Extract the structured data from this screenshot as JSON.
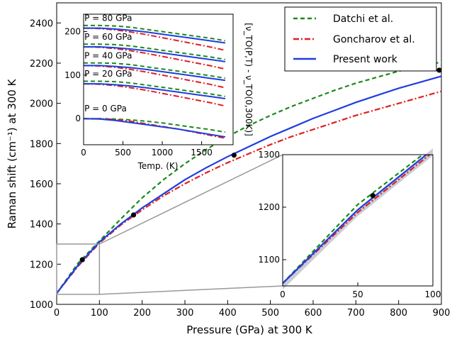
{
  "chart_data": [
    {
      "id": "main",
      "type": "line",
      "xlabel": "Pressure (GPa) at 300 K",
      "ylabel": "Raman shift (cm⁻¹) at 300 K",
      "xlim": [
        0,
        900
      ],
      "ylim": [
        1000,
        2500
      ],
      "xticks": [
        0,
        100,
        200,
        300,
        400,
        500,
        600,
        700,
        800,
        900
      ],
      "yticks": [
        1000,
        1200,
        1400,
        1600,
        1800,
        2000,
        2200,
        2400
      ],
      "legend": {
        "placement": "top-right",
        "entries": [
          "Datchi et al.",
          "Goncharov et al.",
          "Present work"
        ]
      },
      "series": [
        {
          "name": "Datchi et al.",
          "color": "#1a8a1a",
          "style": "dashed",
          "x": [
            0,
            50,
            100,
            150,
            200,
            250,
            300,
            350,
            400,
            450,
            500,
            550,
            600,
            650,
            700,
            750,
            800,
            850,
            900
          ],
          "y": [
            1055,
            1205,
            1315,
            1425,
            1530,
            1620,
            1700,
            1770,
            1835,
            1890,
            1940,
            1985,
            2025,
            2065,
            2100,
            2130,
            2160,
            2185,
            2205
          ]
        },
        {
          "name": "Goncharov et al.",
          "color": "#e02020",
          "style": "dashdot",
          "x": [
            0,
            50,
            100,
            150,
            200,
            250,
            300,
            350,
            400,
            450,
            500,
            550,
            600,
            650,
            700,
            750,
            800,
            850,
            900
          ],
          "y": [
            1055,
            1190,
            1305,
            1395,
            1470,
            1540,
            1600,
            1655,
            1705,
            1750,
            1795,
            1835,
            1870,
            1905,
            1940,
            1970,
            2000,
            2030,
            2060
          ]
        },
        {
          "name": "Present work",
          "color": "#1f3de0",
          "style": "solid",
          "x": [
            0,
            50,
            100,
            150,
            200,
            250,
            300,
            350,
            400,
            450,
            500,
            550,
            600,
            650,
            700,
            750,
            800,
            850,
            900
          ],
          "y": [
            1055,
            1195,
            1310,
            1400,
            1480,
            1550,
            1620,
            1680,
            1735,
            1785,
            1835,
            1880,
            1925,
            1965,
            2005,
            2040,
            2075,
            2105,
            2135
          ]
        }
      ],
      "markers": {
        "color": "#000000",
        "x": [
          60,
          180,
          415,
          895
        ],
        "y": [
          1222,
          1445,
          1742,
          2165
        ]
      }
    },
    {
      "id": "inset-top",
      "type": "line",
      "xlabel": "Temp. (K)",
      "ylabel": "[ν_TO(P,T) - ν_TO(0,300K)]",
      "xlim": [
        0,
        1900
      ],
      "ylim": [
        -60,
        240
      ],
      "xticks": [
        0,
        500,
        1000,
        1500
      ],
      "yticks": [
        0,
        100,
        200
      ],
      "panels": [
        {
          "label": "P = 80 GPa",
          "offset": 208
        },
        {
          "label": "P = 60 GPa",
          "offset": 165
        },
        {
          "label": "P = 40 GPa",
          "offset": 122
        },
        {
          "label": "P = 20 GPa",
          "offset": 80
        },
        {
          "label": "P =  0 GPa",
          "offset": 0
        }
      ],
      "temps": [
        0,
        200,
        400,
        600,
        800,
        1000,
        1200,
        1400,
        1600,
        1800
      ],
      "curves": {
        "Datchi et al.": [
          6,
          6,
          5,
          2,
          -3,
          -8,
          -13,
          -18,
          -23,
          -29
        ],
        "Goncharov et al.": [
          0,
          -1,
          -4,
          -9,
          -15,
          -22,
          -29,
          -36,
          -43,
          -51
        ],
        "Present work": [
          0,
          0,
          -2,
          -5,
          -9,
          -14,
          -19,
          -24,
          -29,
          -34
        ]
      },
      "zero_curves": {
        "Datchi et al.": [
          0,
          0,
          -1,
          -3,
          -6,
          -10,
          -15,
          -20,
          -25,
          -31
        ],
        "Goncharov et al.": [
          0,
          0,
          -2,
          -6,
          -12,
          -18,
          -24,
          -31,
          -38,
          -45
        ],
        "Present work": [
          0,
          -1,
          -4,
          -9,
          -14,
          -19,
          -24,
          -30,
          -36,
          -42
        ]
      }
    },
    {
      "id": "inset-zoom",
      "type": "line",
      "xlim": [
        0,
        100
      ],
      "ylim": [
        1050,
        1300
      ],
      "xticks": [
        0,
        50,
        100
      ],
      "yticks": [
        1100,
        1200,
        1300
      ],
      "marker": {
        "x": 60,
        "y": 1222
      }
    }
  ]
}
